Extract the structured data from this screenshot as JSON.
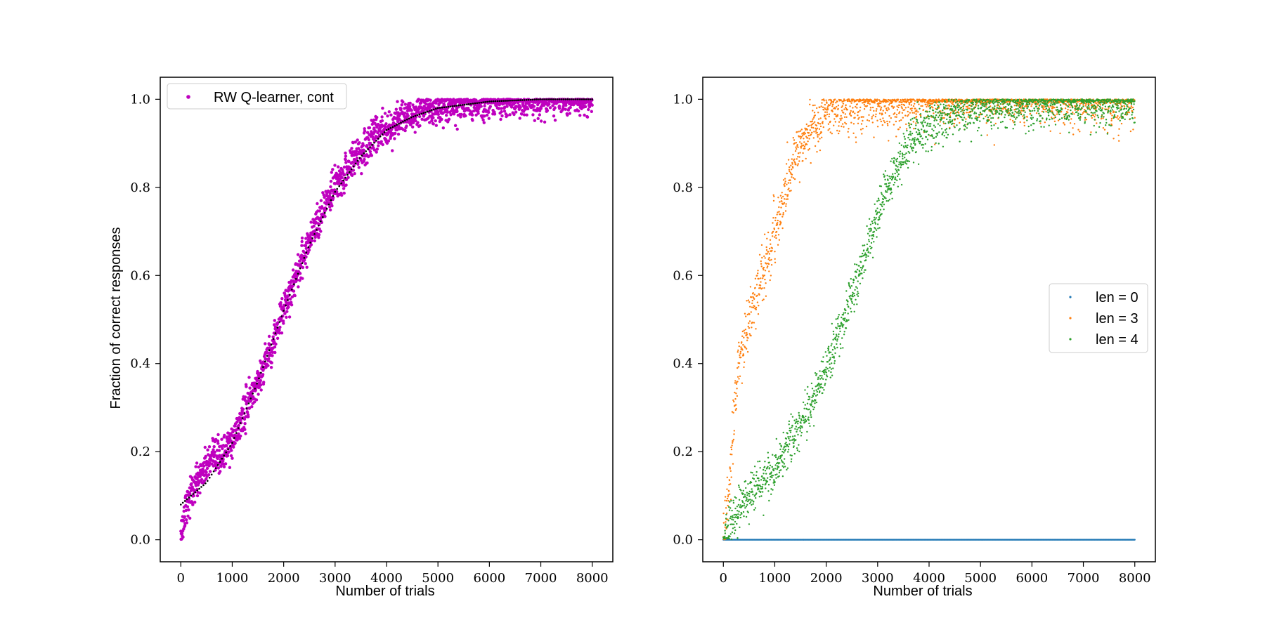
{
  "figure": {
    "background": "#ffffff"
  },
  "chart_data": [
    {
      "type": "scatter",
      "xlabel": "Number of trials",
      "ylabel": "Fraction of correct responses",
      "xlim": [
        -400,
        8400
      ],
      "ylim": [
        -0.05,
        1.05
      ],
      "xticks": [
        "0",
        "1000",
        "2000",
        "3000",
        "4000",
        "5000",
        "6000",
        "7000",
        "8000"
      ],
      "yticks": [
        "0.0",
        "0.2",
        "0.4",
        "0.6",
        "0.8",
        "1.0"
      ],
      "legend_position": "top-left",
      "series": [
        {
          "name": "RW Q-learner, cont",
          "color": "#bf00bf",
          "marker": "dot",
          "x_range": [
            0,
            8000
          ],
          "n_points": 8000,
          "approx_mean_curve": [
            [
              0,
              0.0
            ],
            [
              100,
              0.08
            ],
            [
              300,
              0.13
            ],
            [
              500,
              0.17
            ],
            [
              800,
              0.19
            ],
            [
              1000,
              0.22
            ],
            [
              1200,
              0.28
            ],
            [
              1500,
              0.36
            ],
            [
              1800,
              0.45
            ],
            [
              2000,
              0.52
            ],
            [
              2300,
              0.62
            ],
            [
              2600,
              0.71
            ],
            [
              3000,
              0.8
            ],
            [
              3400,
              0.87
            ],
            [
              3800,
              0.92
            ],
            [
              4200,
              0.95
            ],
            [
              4600,
              0.97
            ],
            [
              5000,
              0.98
            ],
            [
              5500,
              0.99
            ],
            [
              6000,
              0.995
            ],
            [
              7000,
              1.0
            ],
            [
              8000,
              1.0
            ]
          ],
          "spread": 0.02
        },
        {
          "name": "fit",
          "color": "#000000",
          "marker": "dotted-line",
          "approx_curve": [
            [
              0,
              0.08
            ],
            [
              500,
              0.13
            ],
            [
              1000,
              0.22
            ],
            [
              1500,
              0.36
            ],
            [
              2000,
              0.52
            ],
            [
              2500,
              0.67
            ],
            [
              3000,
              0.79
            ],
            [
              3500,
              0.87
            ],
            [
              4000,
              0.93
            ],
            [
              4500,
              0.96
            ],
            [
              5000,
              0.98
            ],
            [
              6000,
              0.995
            ],
            [
              7000,
              1.0
            ],
            [
              8000,
              1.0
            ]
          ]
        }
      ]
    },
    {
      "type": "scatter",
      "xlabel": "Number of trials",
      "ylabel": "",
      "xlim": [
        -400,
        8400
      ],
      "ylim": [
        -0.05,
        1.05
      ],
      "xticks": [
        "0",
        "1000",
        "2000",
        "3000",
        "4000",
        "5000",
        "6000",
        "7000",
        "8000"
      ],
      "yticks": [
        "0.0",
        "0.2",
        "0.4",
        "0.6",
        "0.8",
        "1.0"
      ],
      "legend_position": "center-right",
      "series": [
        {
          "name": "len = 0",
          "color": "#1f77b4",
          "marker": "dot",
          "x_range": [
            0,
            8000
          ],
          "n_points": 8000,
          "approx_mean_curve": [
            [
              0,
              0.0
            ],
            [
              8000,
              0.0
            ]
          ],
          "spread": 0.0
        },
        {
          "name": "len = 3",
          "color": "#ff7f0e",
          "marker": "dot",
          "x_range": [
            0,
            8000
          ],
          "n_points": 8000,
          "approx_mean_curve": [
            [
              0,
              0.0
            ],
            [
              100,
              0.1
            ],
            [
              200,
              0.25
            ],
            [
              300,
              0.4
            ],
            [
              500,
              0.5
            ],
            [
              700,
              0.58
            ],
            [
              900,
              0.65
            ],
            [
              1100,
              0.74
            ],
            [
              1300,
              0.83
            ],
            [
              1500,
              0.9
            ],
            [
              1800,
              0.95
            ],
            [
              2200,
              0.98
            ],
            [
              2800,
              0.99
            ],
            [
              4000,
              1.0
            ],
            [
              8000,
              1.0
            ]
          ],
          "spread": 0.03
        },
        {
          "name": "len = 4",
          "color": "#2ca02c",
          "marker": "dot",
          "x_range": [
            0,
            8000
          ],
          "n_points": 8000,
          "approx_mean_curve": [
            [
              0,
              0.0
            ],
            [
              200,
              0.05
            ],
            [
              500,
              0.1
            ],
            [
              900,
              0.15
            ],
            [
              1200,
              0.2
            ],
            [
              1500,
              0.26
            ],
            [
              1800,
              0.33
            ],
            [
              2100,
              0.42
            ],
            [
              2400,
              0.52
            ],
            [
              2700,
              0.63
            ],
            [
              3000,
              0.74
            ],
            [
              3300,
              0.83
            ],
            [
              3600,
              0.9
            ],
            [
              4000,
              0.94
            ],
            [
              4500,
              0.97
            ],
            [
              5000,
              0.985
            ],
            [
              6000,
              0.99
            ],
            [
              8000,
              0.995
            ]
          ],
          "spread": 0.025
        }
      ]
    }
  ]
}
